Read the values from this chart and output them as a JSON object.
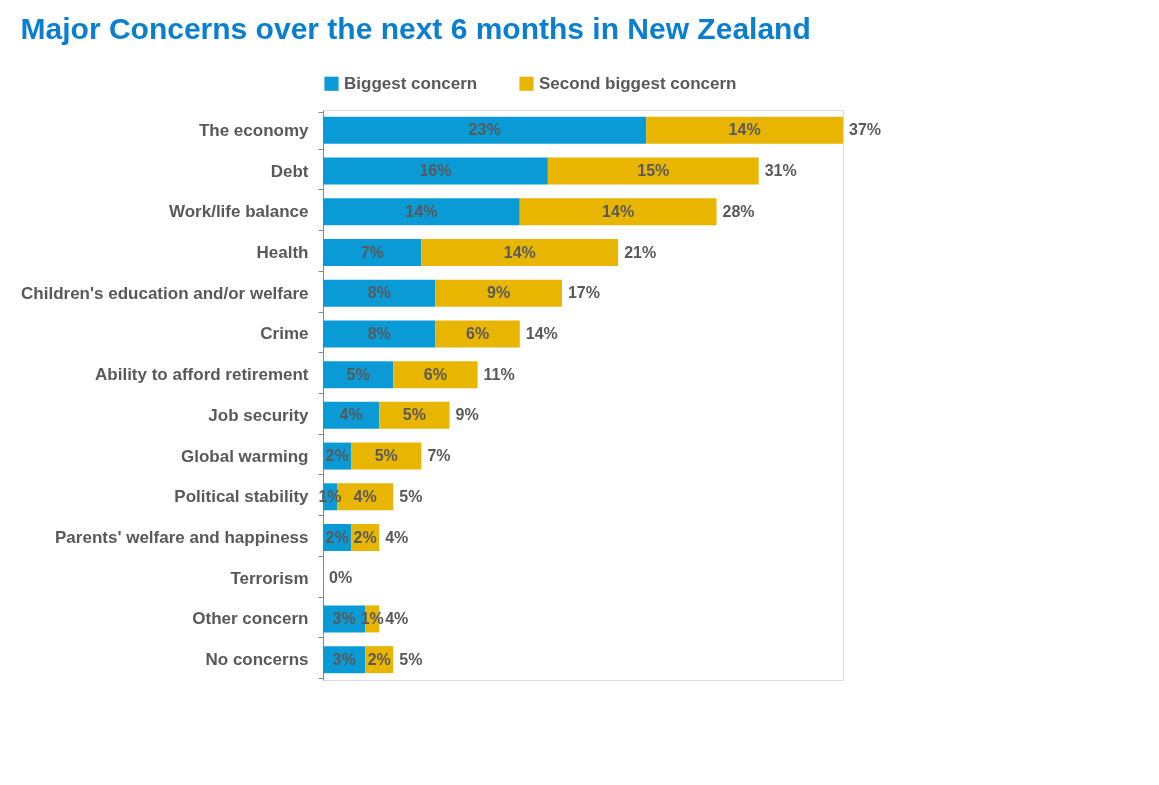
{
  "chart_data": {
    "type": "bar",
    "orientation": "horizontal",
    "stacked": true,
    "title": "Major Concerns over the next 6 months in New Zealand",
    "categories": [
      "The economy",
      "Debt",
      "Work/life balance",
      "Health",
      "Children's education and/or welfare",
      "Crime",
      "Ability to afford retirement",
      "Job security",
      "Global warming",
      "Political stability",
      "Parents' welfare and happiness",
      "Terrorism",
      "Other concern",
      "No concerns"
    ],
    "series": [
      {
        "name": "Biggest concern",
        "color": "#0a9bd7",
        "values": [
          23,
          16,
          14,
          7,
          8,
          8,
          5,
          4,
          2,
          1,
          2,
          0,
          3,
          3
        ],
        "value_labels": [
          "23%",
          "16%",
          "14%",
          "7%",
          "8%",
          "8%",
          "5%",
          "4%",
          "2%",
          "1%",
          "2%",
          null,
          "3%",
          "3%"
        ]
      },
      {
        "name": "Second biggest concern",
        "color": "#e8b600",
        "values": [
          14,
          15,
          14,
          14,
          9,
          6,
          6,
          5,
          5,
          4,
          2,
          0,
          1,
          2
        ],
        "value_labels": [
          "14%",
          "15%",
          "14%",
          "14%",
          "9%",
          "6%",
          "6%",
          "5%",
          "5%",
          "4%",
          "2%",
          null,
          "1%",
          "2%"
        ]
      }
    ],
    "totals": [
      "37%",
      "31%",
      "28%",
      "21%",
      "17%",
      "14%",
      "11%",
      "9%",
      "7%",
      "5%",
      "4%",
      "0%",
      "4%",
      "5%"
    ],
    "legend": "top"
  }
}
